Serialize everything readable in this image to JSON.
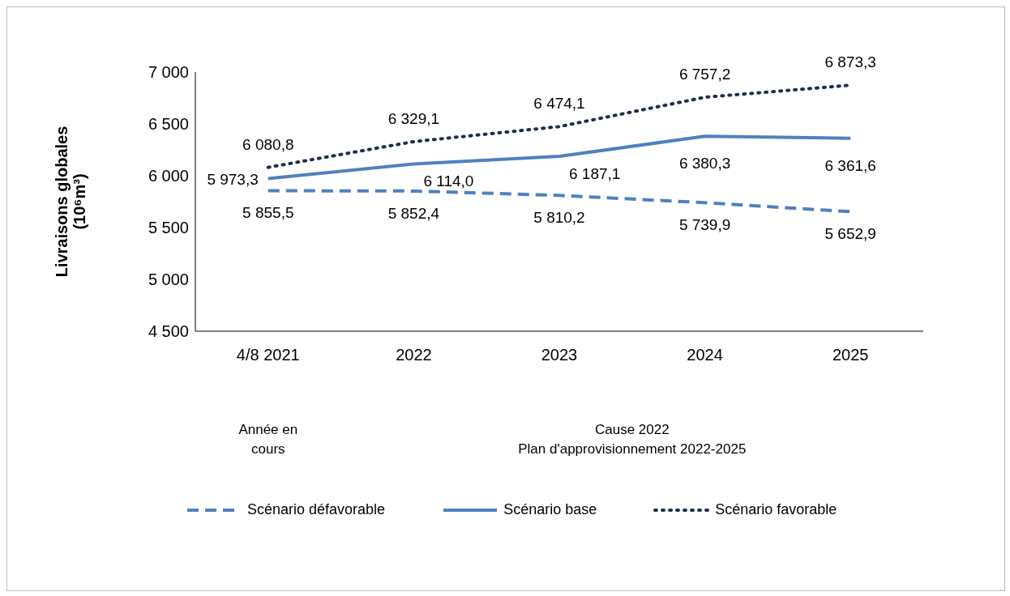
{
  "chart_data": {
    "type": "line",
    "ylabel": "Livraisons globales (10⁶m³)",
    "categories": [
      "4/8 2021",
      "2022",
      "2023",
      "2024",
      "2025"
    ],
    "series": [
      {
        "name": "Scénario défavorable",
        "color": "#4f81bd",
        "line_style": "dashed",
        "values": [
          5855.5,
          5852.4,
          5810.2,
          5739.9,
          5652.9
        ],
        "value_labels": [
          "5 855,5",
          "5 852,4",
          "5 810,2",
          "5 739,9",
          "5 652,9"
        ]
      },
      {
        "name": "Scénario base",
        "color": "#4f81bd",
        "line_style": "solid",
        "values": [
          5973.3,
          6114.0,
          6187.1,
          6380.3,
          6361.6
        ],
        "value_labels": [
          "5 973,3",
          "6 114,0",
          "6 187,1",
          "6 380,3",
          "6 361,6"
        ]
      },
      {
        "name": "Scénario favorable",
        "color": "#1f2d4d",
        "line_style": "dotted",
        "values": [
          6080.8,
          6329.1,
          6474.1,
          6757.2,
          6873.3
        ],
        "value_labels": [
          "6 080,8",
          "6 329,1",
          "6 474,1",
          "6 757,2",
          "6 873,3"
        ]
      }
    ],
    "ylim": [
      4500,
      7000
    ],
    "yticks": [
      {
        "value": 4500,
        "label": "4 500"
      },
      {
        "value": 5000,
        "label": "5 000"
      },
      {
        "value": 5500,
        "label": "5 500"
      },
      {
        "value": 6000,
        "label": "6 000"
      },
      {
        "value": 6500,
        "label": "6 500"
      },
      {
        "value": 7000,
        "label": "7 000"
      }
    ],
    "grid": false,
    "legend": "bottom",
    "marker": "none",
    "annotations": [
      "Année en cours",
      "Cause 2022\nPlan d'approvisionnement 2022-2025"
    ]
  }
}
